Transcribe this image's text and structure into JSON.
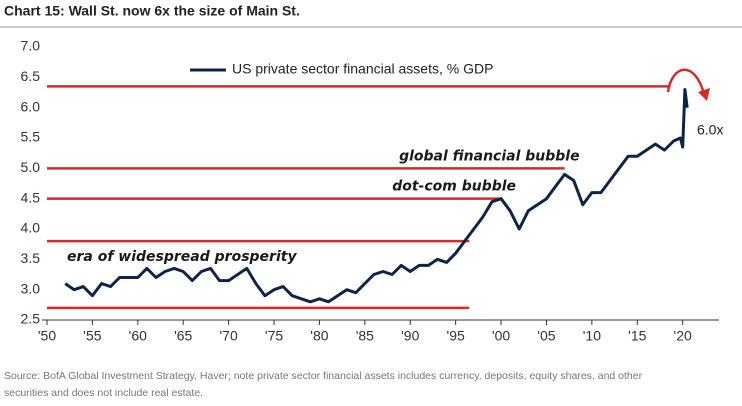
{
  "chart_data": {
    "type": "line",
    "title": "Chart 15: Wall St. now 6x the size of Main St.",
    "source": [
      "Source: BofA Global Investment Strategy, Haver; note private sector financial assets includes currency, deposits, equity shares, and other",
      "securities and does not include real estate."
    ],
    "legend": "top-left",
    "xlim": [
      1950,
      2024
    ],
    "ylim": [
      2.5,
      7.0
    ],
    "xticks": [
      {
        "value": 1950,
        "label": "'50"
      },
      {
        "value": 1955,
        "label": "'55"
      },
      {
        "value": 1960,
        "label": "'60"
      },
      {
        "value": 1965,
        "label": "'65"
      },
      {
        "value": 1970,
        "label": "'70"
      },
      {
        "value": 1975,
        "label": "'75"
      },
      {
        "value": 1980,
        "label": "'80"
      },
      {
        "value": 1985,
        "label": "'85"
      },
      {
        "value": 1990,
        "label": "'90"
      },
      {
        "value": 1995,
        "label": "'95"
      },
      {
        "value": 2000,
        "label": "'00"
      },
      {
        "value": 2005,
        "label": "'05"
      },
      {
        "value": 2010,
        "label": "'10"
      },
      {
        "value": 2015,
        "label": "'15"
      },
      {
        "value": 2020,
        "label": "'20"
      }
    ],
    "yticks": [
      2.5,
      {
        "value": 3,
        "label": "3.0"
      },
      3.5,
      {
        "value": 4,
        "label": "4.0"
      },
      4.5,
      {
        "value": 5,
        "label": "5.0"
      },
      5.5,
      {
        "value": 6,
        "label": "6.0"
      },
      6.5,
      {
        "value": 7,
        "label": "7.0"
      }
    ],
    "x": [
      1952,
      1953,
      1954,
      1955,
      1956,
      1957,
      1958,
      1959,
      1960,
      1961,
      1962,
      1963,
      1964,
      1965,
      1966,
      1967,
      1968,
      1969,
      1970,
      1971,
      1972,
      1973,
      1974,
      1975,
      1976,
      1977,
      1978,
      1979,
      1980,
      1981,
      1982,
      1983,
      1984,
      1985,
      1986,
      1987,
      1988,
      1989,
      1990,
      1991,
      1992,
      1993,
      1994,
      1995,
      1996,
      1997,
      1998,
      1999,
      2000,
      2001,
      2002,
      2003,
      2004,
      2005,
      2006,
      2007,
      2008,
      2009,
      2010,
      2011,
      2012,
      2013,
      2014,
      2015,
      2016,
      2017,
      2018,
      2019,
      2019.75,
      2020,
      2020.25,
      2020.5
    ],
    "series": [
      {
        "name": "US private sector financial assets, % GDP",
        "color": "#0f2444",
        "values": [
          3.1,
          3.0,
          3.05,
          2.9,
          3.1,
          3.05,
          3.2,
          3.2,
          3.2,
          3.35,
          3.2,
          3.3,
          3.35,
          3.3,
          3.15,
          3.3,
          3.35,
          3.15,
          3.15,
          3.25,
          3.35,
          3.1,
          2.9,
          3.0,
          3.05,
          2.9,
          2.85,
          2.8,
          2.85,
          2.8,
          2.9,
          3.0,
          2.95,
          3.1,
          3.25,
          3.3,
          3.25,
          3.4,
          3.3,
          3.4,
          3.4,
          3.5,
          3.45,
          3.6,
          3.8,
          4.0,
          4.2,
          4.45,
          4.5,
          4.3,
          4.0,
          4.3,
          4.4,
          4.5,
          4.7,
          4.9,
          4.8,
          4.4,
          4.6,
          4.6,
          4.8,
          5.0,
          5.2,
          5.2,
          5.3,
          5.4,
          5.3,
          5.45,
          5.5,
          5.35,
          6.3,
          6.0
        ]
      }
    ],
    "reference_lines": [
      {
        "y": 6.35,
        "x_end": 2018.5,
        "color": "#d42a2a"
      },
      {
        "y": 5.0,
        "x_end": 2007,
        "color": "#d42a2a",
        "label": "global financial bubble"
      },
      {
        "y": 4.5,
        "x_end": 2000,
        "color": "#d42a2a",
        "label": "dot-com bubble"
      },
      {
        "y": 3.8,
        "x_end": 1996.5,
        "color": "#d42a2a",
        "label": "era of widespread prosperity"
      },
      {
        "y": 2.7,
        "x_end": 1996.5,
        "color": "#d42a2a"
      }
    ],
    "annotation": "6.0x"
  }
}
